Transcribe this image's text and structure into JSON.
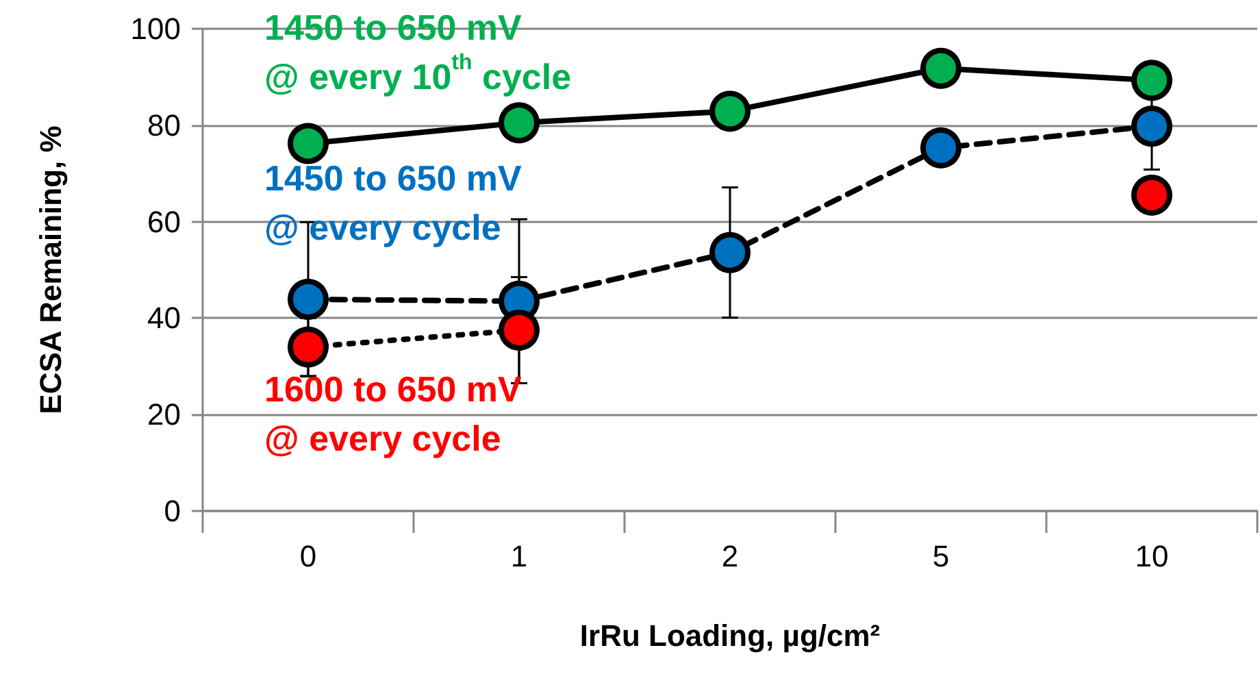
{
  "chart_data": {
    "type": "line",
    "xlabel": "IrRu Loading, µg/cm²",
    "ylabel": "ECSA Remaining, %",
    "categories": [
      "0",
      "1",
      "2",
      "5",
      "10"
    ],
    "series": [
      {
        "name": "1450 to 650 mV\n@ every 10$^{th}$ cycle",
        "color": "#00b050",
        "line_style": "solid",
        "values": [
          76.2,
          80.5,
          82.9,
          91.8,
          89.3
        ]
      },
      {
        "name": "1450 to 650 mV\n@ every cycle",
        "color": "#0070c0",
        "line_style": "dashed",
        "values": [
          43.9,
          43.5,
          53.6,
          75.3,
          79.8
        ],
        "errors": [
          16,
          17,
          13.5,
          null,
          9
        ]
      },
      {
        "name": "1600 to 650 mV\n@ every cycle",
        "color": "#ff0000",
        "line_style": "dotted",
        "values": [
          34,
          37.5,
          null,
          null,
          65.5
        ],
        "errors": [
          6,
          11,
          null,
          null,
          null
        ]
      }
    ],
    "ylim": [
      0,
      100
    ],
    "yticks": [
      0,
      20,
      40,
      60,
      80,
      100
    ],
    "grid": "y",
    "marker": "circle",
    "legend": false
  }
}
